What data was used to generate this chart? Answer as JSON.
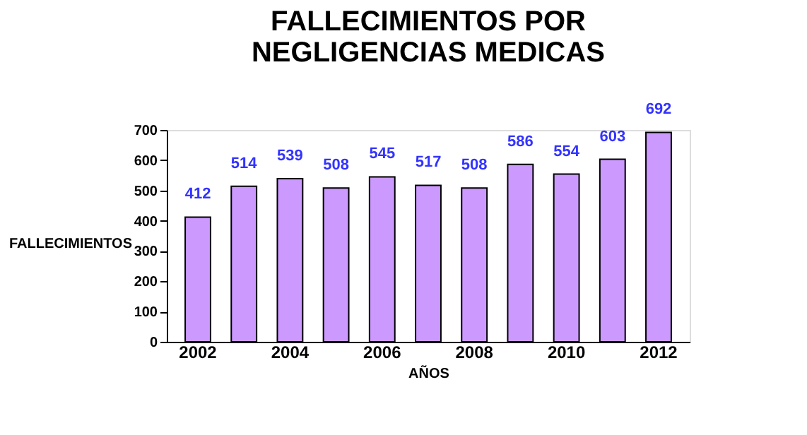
{
  "chart_data": {
    "type": "bar",
    "title": "FALLECIMIENTOS POR NEGLIGENCIAS MEDICAS",
    "xlabel": "AÑOS",
    "ylabel": "FALLECIMIENTOS",
    "categories": [
      "2002",
      null,
      "2004",
      null,
      "2006",
      null,
      "2008",
      null,
      "2010",
      null,
      "2012"
    ],
    "series": [
      {
        "color": "#cc99ff",
        "values": [
          412,
          514,
          539,
          508,
          545,
          517,
          508,
          586,
          554,
          603,
          692
        ]
      }
    ],
    "ylim": [
      0,
      700
    ],
    "yticks": [
      0,
      100,
      200,
      300,
      400,
      500,
      600,
      700
    ],
    "data_labels": true,
    "grid": false
  }
}
